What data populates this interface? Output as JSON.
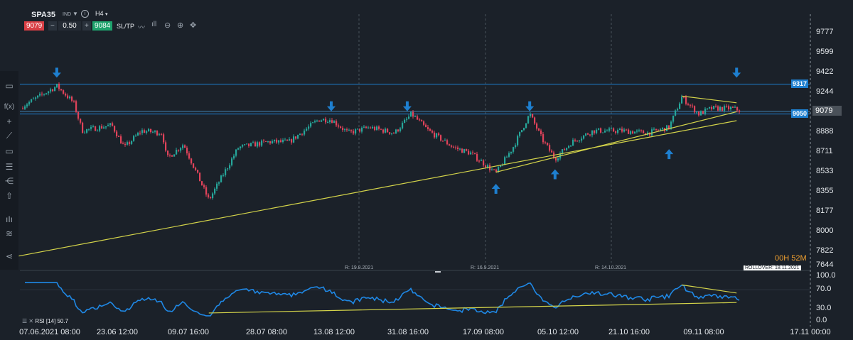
{
  "header": {
    "symbol": "SPA35",
    "type": "IND",
    "timeframe": "H4",
    "sell_price": "9079",
    "spread": "0.50",
    "buy_price": "9084",
    "sltp_label": "SL/TP",
    "minus": "−",
    "plus": "+"
  },
  "left_toolbar": [
    "window-icon",
    "function-icon",
    "crosshair-icon",
    "line-tool-icon",
    "rectangle-icon",
    "fibonacci-icon",
    "pitchfork-icon",
    "shapes-icon",
    "indicators-icon",
    "layers-icon",
    "share-icon"
  ],
  "colors": {
    "background": "#1b2129",
    "up": "#26a69a",
    "down": "#e0435a",
    "trendline": "#d4d44a",
    "level": "#1e7fcf",
    "rsi": "#1f88e5",
    "countdown": "#f0a030"
  },
  "chart_data": {
    "type": "candlestick",
    "instrument": "SPA35",
    "timeframe": "H4",
    "y_ticks": [
      "9777",
      "9599",
      "9422",
      "9244",
      "9079",
      "8888",
      "8711",
      "8533",
      "8355",
      "8177",
      "8000",
      "7822",
      "7644"
    ],
    "ylim": [
      7644,
      9777
    ],
    "current_price": "9079",
    "levels": [
      {
        "label": "9317",
        "price": 9317
      },
      {
        "label": "9050",
        "price": 9050
      }
    ],
    "x_ticks": [
      "07.06.2021 08:00",
      "23.06 12:00",
      "09.07 16:00",
      "28.07 08:00",
      "13.08 12:00",
      "31.08 16:00",
      "17.09 08:00",
      "05.10 12:00",
      "21.10 16:00",
      "09.11 08:00",
      "17.11 00:00"
    ],
    "close_path": [
      [
        "31.05",
        9100
      ],
      [
        "09.06",
        9300
      ],
      [
        "13.06",
        9150
      ],
      [
        "15.06",
        8900
      ],
      [
        "22.06",
        8950
      ],
      [
        "25.06",
        8750
      ],
      [
        "29.06",
        8900
      ],
      [
        "04.07",
        8880
      ],
      [
        "05.07",
        8650
      ],
      [
        "09.07",
        8780
      ],
      [
        "15.07",
        8280
      ],
      [
        "19.07",
        8550
      ],
      [
        "22.07",
        8750
      ],
      [
        "29.07",
        8800
      ],
      [
        "03.08",
        8800
      ],
      [
        "10.08",
        9000
      ],
      [
        "13.08",
        9000
      ],
      [
        "17.08",
        8880
      ],
      [
        "22.08",
        8930
      ],
      [
        "28.08",
        8880
      ],
      [
        "01.09",
        9050
      ],
      [
        "05.09",
        8900
      ],
      [
        "11.09",
        8750
      ],
      [
        "15.09",
        8700
      ],
      [
        "21.09",
        8520
      ],
      [
        "25.09",
        8750
      ],
      [
        "29.09",
        9050
      ],
      [
        "02.10",
        8820
      ],
      [
        "05.10",
        8650
      ],
      [
        "09.10",
        8800
      ],
      [
        "14.10",
        8900
      ],
      [
        "21.10",
        8900
      ],
      [
        "27.10",
        8880
      ],
      [
        "01.11",
        8930
      ],
      [
        "04.11",
        9200
      ],
      [
        "08.11",
        9050
      ],
      [
        "11.11",
        9100
      ],
      [
        "16.11",
        9100
      ],
      [
        "18.11",
        9079
      ]
    ],
    "trendlines": [
      {
        "from": [
          "31.05",
          7780
        ],
        "to": [
          "17.11",
          8990
        ]
      },
      {
        "from": [
          "21.09",
          8530
        ],
        "to": [
          "17.11",
          9070
        ]
      },
      {
        "from": [
          "04.11",
          9210
        ],
        "to": [
          "17.11",
          9150
        ]
      }
    ],
    "arrows": {
      "down": [
        [
          "09.06",
          9400
        ],
        [
          "13.08",
          9100
        ],
        [
          "31.08",
          9100
        ],
        [
          "29.09",
          9100
        ],
        [
          "17.11",
          9400
        ]
      ],
      "up": [
        [
          "21.09",
          8400
        ],
        [
          "05.10",
          8530
        ],
        [
          "01.11",
          8710
        ]
      ]
    },
    "rollover_markers": [
      "R: 19.8.2021",
      "R: 16.9.2021",
      "R: 14.10.2021"
    ],
    "countdown": {
      "hours": "00H",
      "minutes": "52M"
    },
    "rollover_badge": "ROLLOVER: 18.11.2021",
    "rsi": {
      "label": "RSI [14] 50.7",
      "period": 14,
      "value": 50.7,
      "y_ticks": [
        "100.0",
        "70.0",
        "30.0",
        "0.0"
      ],
      "trendlines": [
        {
          "from": [
            "15.07",
            21
          ],
          "to": [
            "17.11",
            43
          ]
        },
        {
          "from": [
            "04.11",
            80
          ],
          "to": [
            "17.11",
            63
          ]
        }
      ]
    }
  }
}
